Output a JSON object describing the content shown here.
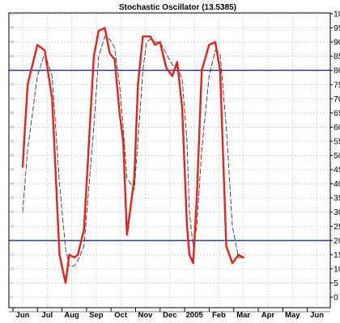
{
  "chart_data": {
    "type": "line",
    "title": "Stochastic Oscillator (13.5385)",
    "xlabel": "",
    "ylabel": "",
    "ylim": [
      0,
      100
    ],
    "y_ticks": [
      0,
      5,
      10,
      15,
      20,
      25,
      30,
      35,
      40,
      45,
      50,
      55,
      60,
      65,
      70,
      75,
      80,
      85,
      90,
      95,
      100
    ],
    "x_tick_labels": [
      "Jun",
      "Jul",
      "Aug",
      "Sep",
      "Oct",
      "Nov",
      "Dec",
      "2005",
      "Feb",
      "Mar",
      "Apr",
      "May",
      "Jun"
    ],
    "grid": true,
    "reference_lines": [
      80,
      20
    ],
    "colors": {
      "main": "#e8211c",
      "signal": "#3a3a3a",
      "reference": "#1224cc",
      "grid": "#c8c8c8"
    },
    "series": [
      {
        "style": "solid",
        "x": [
          0,
          0.2,
          0.6,
          0.9,
          1.2,
          1.5,
          1.75,
          1.9,
          2.1,
          2.25,
          2.5,
          2.9,
          3.1,
          3.35,
          3.55,
          3.75,
          3.95,
          4.1,
          4.25,
          4.55,
          4.7,
          4.9,
          5.05,
          5.2,
          5.4,
          5.6,
          5.85,
          6.1,
          6.3,
          6.5,
          6.7,
          6.8,
          6.95,
          7.1,
          7.3,
          7.6,
          7.85,
          8.05,
          8.3,
          8.55,
          8.8,
          9.0,
          9.2,
          9.45,
          9.65,
          9.8
        ],
        "y": [
          46,
          75,
          89,
          87,
          70,
          15,
          5,
          15,
          14,
          15,
          24,
          85,
          94,
          95,
          86,
          84,
          65,
          55,
          22,
          42,
          75,
          92,
          92,
          92,
          89,
          90,
          81,
          78,
          83,
          67,
          25,
          15,
          12,
          35,
          80,
          89,
          90,
          80,
          18,
          12,
          15,
          14,
          null,
          null,
          null,
          null
        ]
      },
      {
        "style": "dashed",
        "x": [
          0,
          0.2,
          0.6,
          0.9,
          1.2,
          1.5,
          1.75,
          1.9,
          2.1,
          2.25,
          2.5,
          2.9,
          3.1,
          3.35,
          3.55,
          3.75,
          3.95,
          4.1,
          4.25,
          4.55,
          4.7,
          4.9,
          5.05,
          5.2,
          5.4,
          5.6,
          5.85,
          6.1,
          6.3,
          6.5,
          6.7,
          6.8,
          6.95,
          7.1,
          7.3,
          7.6,
          7.85,
          8.05,
          8.3,
          8.55,
          8.8,
          9.0,
          9.2,
          9.45,
          9.65,
          9.8
        ],
        "y": [
          30,
          52,
          78,
          86,
          78,
          40,
          17,
          11,
          11,
          13,
          18,
          60,
          85,
          92,
          91,
          88,
          75,
          60,
          42,
          38,
          55,
          80,
          90,
          91,
          90,
          90,
          86,
          82,
          81,
          77,
          55,
          30,
          18,
          25,
          52,
          78,
          87,
          86,
          60,
          25,
          14,
          14,
          null,
          null,
          null,
          null
        ]
      }
    ]
  }
}
